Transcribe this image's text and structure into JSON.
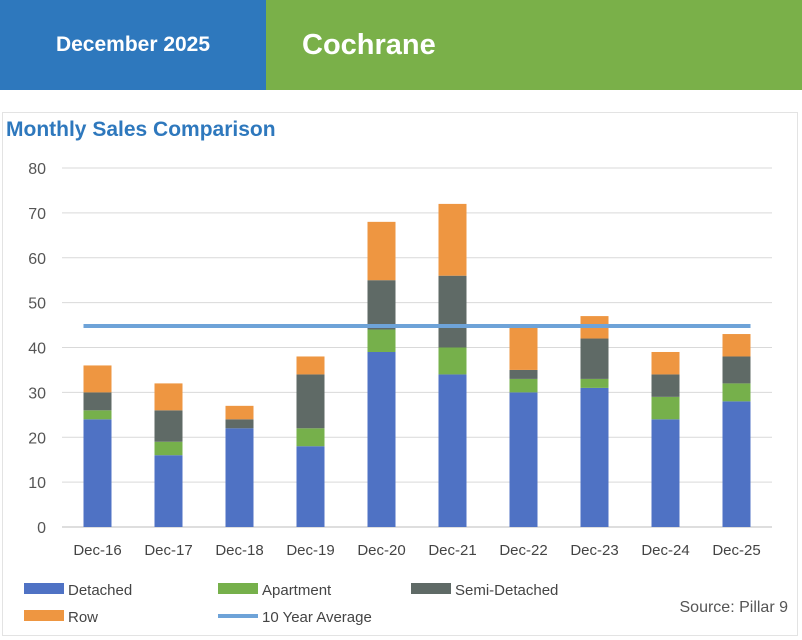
{
  "header": {
    "date": "December 2025",
    "city": "Cochrane"
  },
  "source": "Source: Pillar 9",
  "colors": {
    "header_blue": "#2e78bd",
    "header_green": "#7ab049",
    "detached": "#4f72c4",
    "apartment": "#76b04b",
    "semi_detached": "#5f6a66",
    "row": "#ee9641",
    "average": "#6ea3d8"
  },
  "chart_data": {
    "type": "bar",
    "stacked": true,
    "title": "Monthly Sales Comparison",
    "categories": [
      "Dec-16",
      "Dec-17",
      "Dec-18",
      "Dec-19",
      "Dec-20",
      "Dec-21",
      "Dec-22",
      "Dec-23",
      "Dec-24",
      "Dec-25"
    ],
    "series": [
      {
        "name": "Detached",
        "values": [
          24,
          16,
          22,
          18,
          39,
          34,
          30,
          31,
          24,
          28
        ]
      },
      {
        "name": "Apartment",
        "values": [
          2,
          3,
          0,
          4,
          5,
          6,
          3,
          2,
          5,
          4
        ]
      },
      {
        "name": "Semi-Detached",
        "values": [
          4,
          7,
          2,
          12,
          11,
          16,
          2,
          9,
          5,
          6
        ]
      },
      {
        "name": "Row",
        "values": [
          6,
          6,
          3,
          4,
          13,
          16,
          10,
          5,
          5,
          5
        ]
      }
    ],
    "average": {
      "name": "10 Year Average",
      "value": 44.8
    },
    "yticks": [
      0,
      10,
      20,
      30,
      40,
      50,
      60,
      70,
      80
    ],
    "ylim": [
      0,
      80
    ],
    "xlabel": "",
    "ylabel": "",
    "legend_position": "bottom"
  }
}
